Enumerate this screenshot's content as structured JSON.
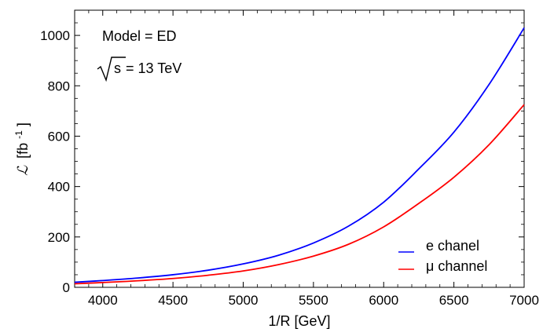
{
  "chart_data": {
    "type": "line",
    "xlabel": "1/R  [GeV]",
    "ylabel_symbol": "ℒ",
    "ylabel_units": "[fb",
    "ylabel_exp": "-1",
    "ylabel_close": "]",
    "xlim": [
      3800,
      7000
    ],
    "ylim": [
      0,
      1100
    ],
    "x_ticks": [
      4000,
      4500,
      5000,
      5500,
      6000,
      6500,
      7000
    ],
    "y_ticks": [
      0,
      200,
      400,
      600,
      800,
      1000
    ],
    "grid": false,
    "legend_position": "bottom-right",
    "annotations": {
      "model": "Model = ED",
      "sqrt_label": "s",
      "energy": " = 13 TeV"
    },
    "series": [
      {
        "name": "e chanel",
        "color": "#0000ff",
        "x": [
          3800,
          4000,
          4250,
          4500,
          4750,
          5000,
          5250,
          5500,
          5750,
          6000,
          6250,
          6500,
          6750,
          7000
        ],
        "y": [
          20,
          27,
          37,
          50,
          68,
          93,
          127,
          176,
          243,
          338,
          470,
          616,
          805,
          1030
        ]
      },
      {
        "name": "μ channel",
        "color": "#ff0000",
        "x": [
          3800,
          4000,
          4250,
          4500,
          4750,
          5000,
          5250,
          5500,
          5750,
          6000,
          6250,
          6500,
          6750,
          7000
        ],
        "y": [
          14,
          19,
          26,
          35,
          48,
          65,
          90,
          124,
          171,
          240,
          333,
          437,
          566,
          725
        ]
      }
    ]
  }
}
